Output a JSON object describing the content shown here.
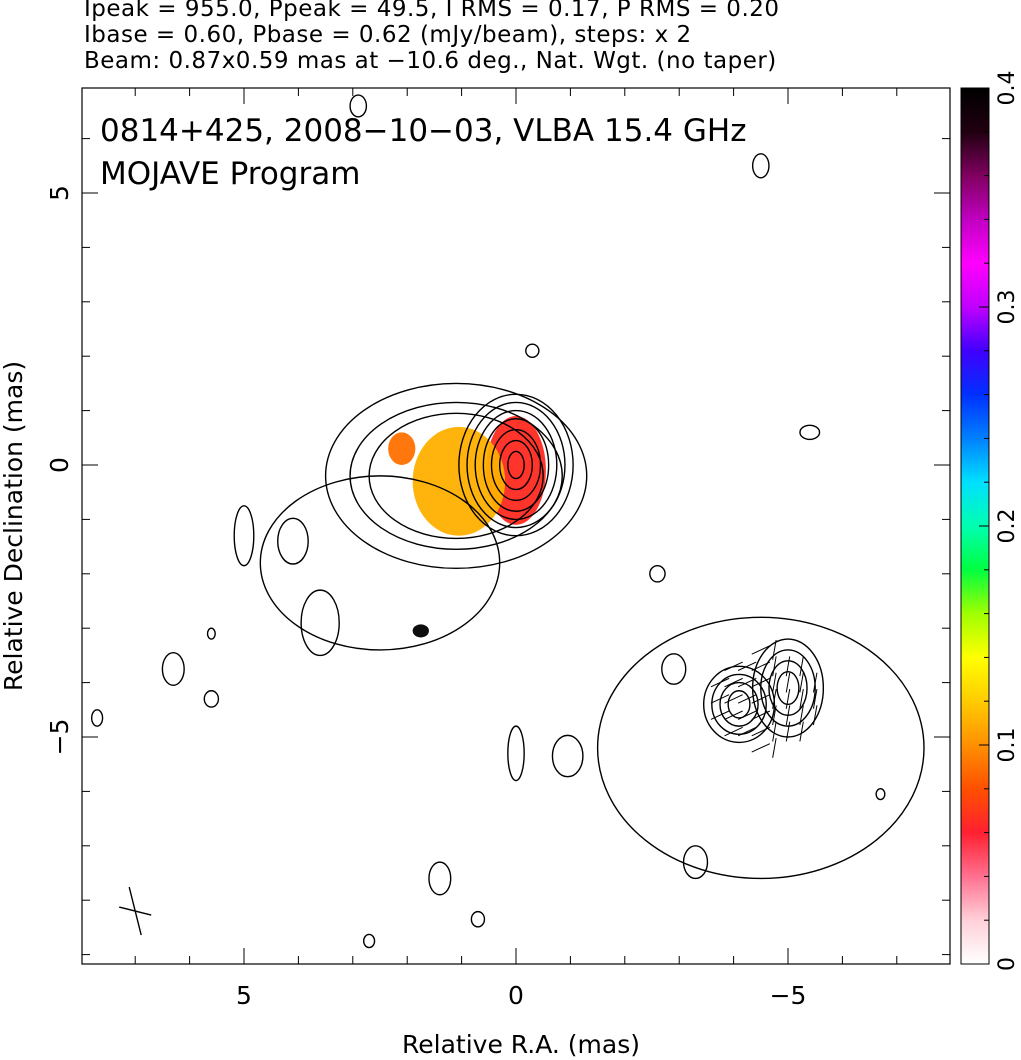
{
  "header": {
    "line1": "Ipeak = 955.0, Ppeak = 49.5, I RMS = 0.17, P RMS = 0.20",
    "line2": "Ibase = 0.60, Pbase = 0.62 (mJy/beam), steps: x 2",
    "line3": "Beam: 0.87x0.59 mas at −10.6 deg., Nat. Wgt. (no taper)"
  },
  "chart_data": {
    "type": "heatmap",
    "title_line1": "0814+425, 2008−10−03, VLBA 15.4 GHz",
    "title_line2": "MOJAVE Program",
    "xlabel": "Relative R.A. (mas)",
    "ylabel": "Relative Declination (mas)",
    "xlim": [
      8.0,
      -8.0
    ],
    "ylim": [
      -9.2,
      7.0
    ],
    "x_major_ticks": [
      5,
      0,
      -5
    ],
    "x_tick_labels": [
      "5",
      "0",
      "−5"
    ],
    "y_major_ticks": [
      5,
      0,
      -5
    ],
    "y_tick_labels": [
      "5",
      "0",
      "−5"
    ],
    "colorbar": {
      "range": [
        0,
        0.4
      ],
      "ticks": [
        0,
        0.1,
        0.2,
        0.3,
        0.4
      ],
      "tick_labels": [
        "0",
        "0.1",
        "0.2",
        "0.3",
        "0.4"
      ],
      "colors": [
        "#ffffff",
        "#ffd0d8",
        "#ff7090",
        "#ff2030",
        "#ff5000",
        "#ff9000",
        "#ffcc00",
        "#ffff00",
        "#a0ff00",
        "#00ff40",
        "#00ffb0",
        "#00e0ff",
        "#0080ff",
        "#0030ff",
        "#4000ff",
        "#c000ff",
        "#ff00ff",
        "#c000c0",
        "#800060",
        "#200010",
        "#000000"
      ]
    },
    "polarization_patches": [
      {
        "name": "core",
        "x": 0.0,
        "y": -0.1,
        "rx": 0.55,
        "ry": 1.0,
        "value": 0.05,
        "color": "#ff2a20"
      },
      {
        "name": "jet-inner",
        "x": 1.05,
        "y": -0.3,
        "rx": 0.85,
        "ry": 1.0,
        "value": 0.12,
        "color": "#ffb000"
      },
      {
        "name": "jet-edge",
        "x": 2.1,
        "y": 0.3,
        "rx": 0.25,
        "ry": 0.3,
        "value": 0.09,
        "color": "#ff7000"
      },
      {
        "name": "hotspot",
        "x": 1.75,
        "y": -3.05,
        "rx": 0.15,
        "ry": 0.12,
        "value": 0.4,
        "color": "#000000"
      }
    ],
    "contour_groups": [
      {
        "name": "core",
        "cx": 0.0,
        "cy": 0.0,
        "radii": [
          [
            0.15,
            0.25
          ],
          [
            0.3,
            0.45
          ],
          [
            0.45,
            0.65
          ],
          [
            0.6,
            0.85
          ],
          [
            0.75,
            1.0
          ],
          [
            0.9,
            1.15
          ],
          [
            1.05,
            1.3
          ]
        ]
      },
      {
        "name": "jet",
        "cx": 1.1,
        "cy": -0.2,
        "radii": [
          [
            1.6,
            1.15
          ],
          [
            1.95,
            1.35
          ],
          [
            2.4,
            1.7
          ]
        ]
      },
      {
        "name": "jet-outer",
        "cx": 2.5,
        "cy": -1.8,
        "radii": [
          [
            2.2,
            1.6
          ]
        ]
      },
      {
        "name": "hotspot-east",
        "cx": -4.1,
        "cy": -4.4,
        "radii": [
          [
            0.2,
            0.25
          ],
          [
            0.35,
            0.4
          ],
          [
            0.5,
            0.55
          ],
          [
            0.65,
            0.7
          ]
        ]
      },
      {
        "name": "hotspot-west",
        "cx": -5.0,
        "cy": -4.1,
        "radii": [
          [
            0.2,
            0.3
          ],
          [
            0.35,
            0.5
          ],
          [
            0.5,
            0.7
          ],
          [
            0.65,
            0.9
          ]
        ]
      },
      {
        "name": "lobe-south",
        "cx": -4.5,
        "cy": -5.2,
        "radii": [
          [
            3.0,
            2.4
          ]
        ]
      }
    ],
    "noise_contours": [
      {
        "x": 2.9,
        "y": 6.6,
        "rx": 0.15,
        "ry": 0.2
      },
      {
        "x": -4.5,
        "y": 5.5,
        "rx": 0.15,
        "ry": 0.22
      },
      {
        "x": -0.3,
        "y": 2.1,
        "rx": 0.12,
        "ry": 0.12
      },
      {
        "x": -5.4,
        "y": 0.6,
        "rx": 0.18,
        "ry": 0.13
      },
      {
        "x": 5.0,
        "y": -1.3,
        "rx": 0.18,
        "ry": 0.55
      },
      {
        "x": 4.1,
        "y": -1.4,
        "rx": 0.28,
        "ry": 0.42
      },
      {
        "x": 3.6,
        "y": -2.9,
        "rx": 0.35,
        "ry": 0.6
      },
      {
        "x": 6.3,
        "y": -3.75,
        "rx": 0.2,
        "ry": 0.3
      },
      {
        "x": 5.6,
        "y": -3.1,
        "rx": 0.07,
        "ry": 0.1
      },
      {
        "x": 5.6,
        "y": -4.3,
        "rx": 0.13,
        "ry": 0.15
      },
      {
        "x": 7.7,
        "y": -4.65,
        "rx": 0.1,
        "ry": 0.15
      },
      {
        "x": -2.6,
        "y": -2.0,
        "rx": 0.14,
        "ry": 0.15
      },
      {
        "x": -2.9,
        "y": -3.75,
        "rx": 0.22,
        "ry": 0.28
      },
      {
        "x": -0.95,
        "y": -5.35,
        "rx": 0.28,
        "ry": 0.38
      },
      {
        "x": 0.0,
        "y": -5.3,
        "rx": 0.15,
        "ry": 0.5
      },
      {
        "x": 1.4,
        "y": -7.6,
        "rx": 0.2,
        "ry": 0.3
      },
      {
        "x": 0.7,
        "y": -8.35,
        "rx": 0.12,
        "ry": 0.14
      },
      {
        "x": 2.7,
        "y": -8.75,
        "rx": 0.1,
        "ry": 0.12
      },
      {
        "x": -3.3,
        "y": -7.3,
        "rx": 0.22,
        "ry": 0.3
      },
      {
        "x": -6.7,
        "y": -6.05,
        "rx": 0.08,
        "ry": 0.1
      }
    ],
    "beam_marker": {
      "x": 7.0,
      "y": -8.2
    }
  }
}
